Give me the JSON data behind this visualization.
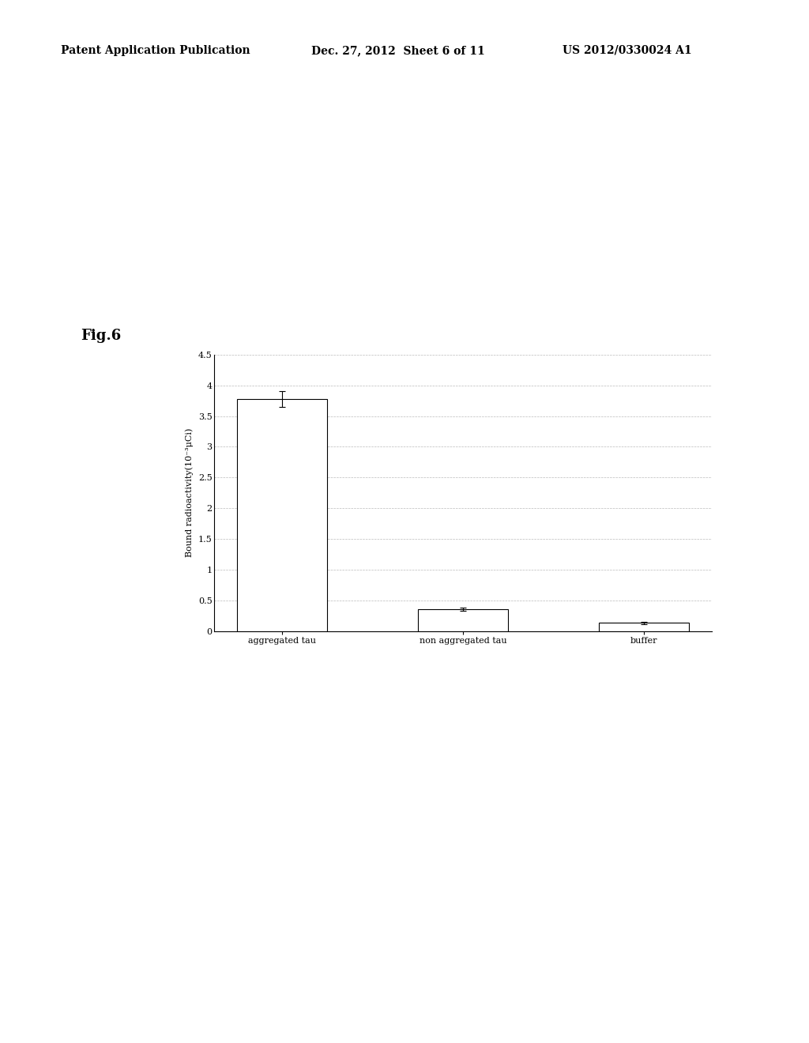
{
  "categories": [
    "aggregated tau",
    "non aggregated tau",
    "buffer"
  ],
  "values": [
    3.78,
    0.35,
    0.13
  ],
  "errors": [
    0.13,
    0.025,
    0.015
  ],
  "bar_color": "#ffffff",
  "bar_edgecolor": "#000000",
  "ylabel": "Bound radioactivity(10⁻³μCi)",
  "ylim": [
    0,
    4.5
  ],
  "yticks": [
    0,
    0.5,
    1,
    1.5,
    2,
    2.5,
    3,
    3.5,
    4,
    4.5
  ],
  "background_color": "#ffffff",
  "fig_label": "Fig.6",
  "header_left": "Patent Application Publication",
  "header_mid": "Dec. 27, 2012  Sheet 6 of 11",
  "header_right": "US 2012/0330024 A1",
  "grid_color": "#bbbbbb",
  "bar_width": 0.5
}
